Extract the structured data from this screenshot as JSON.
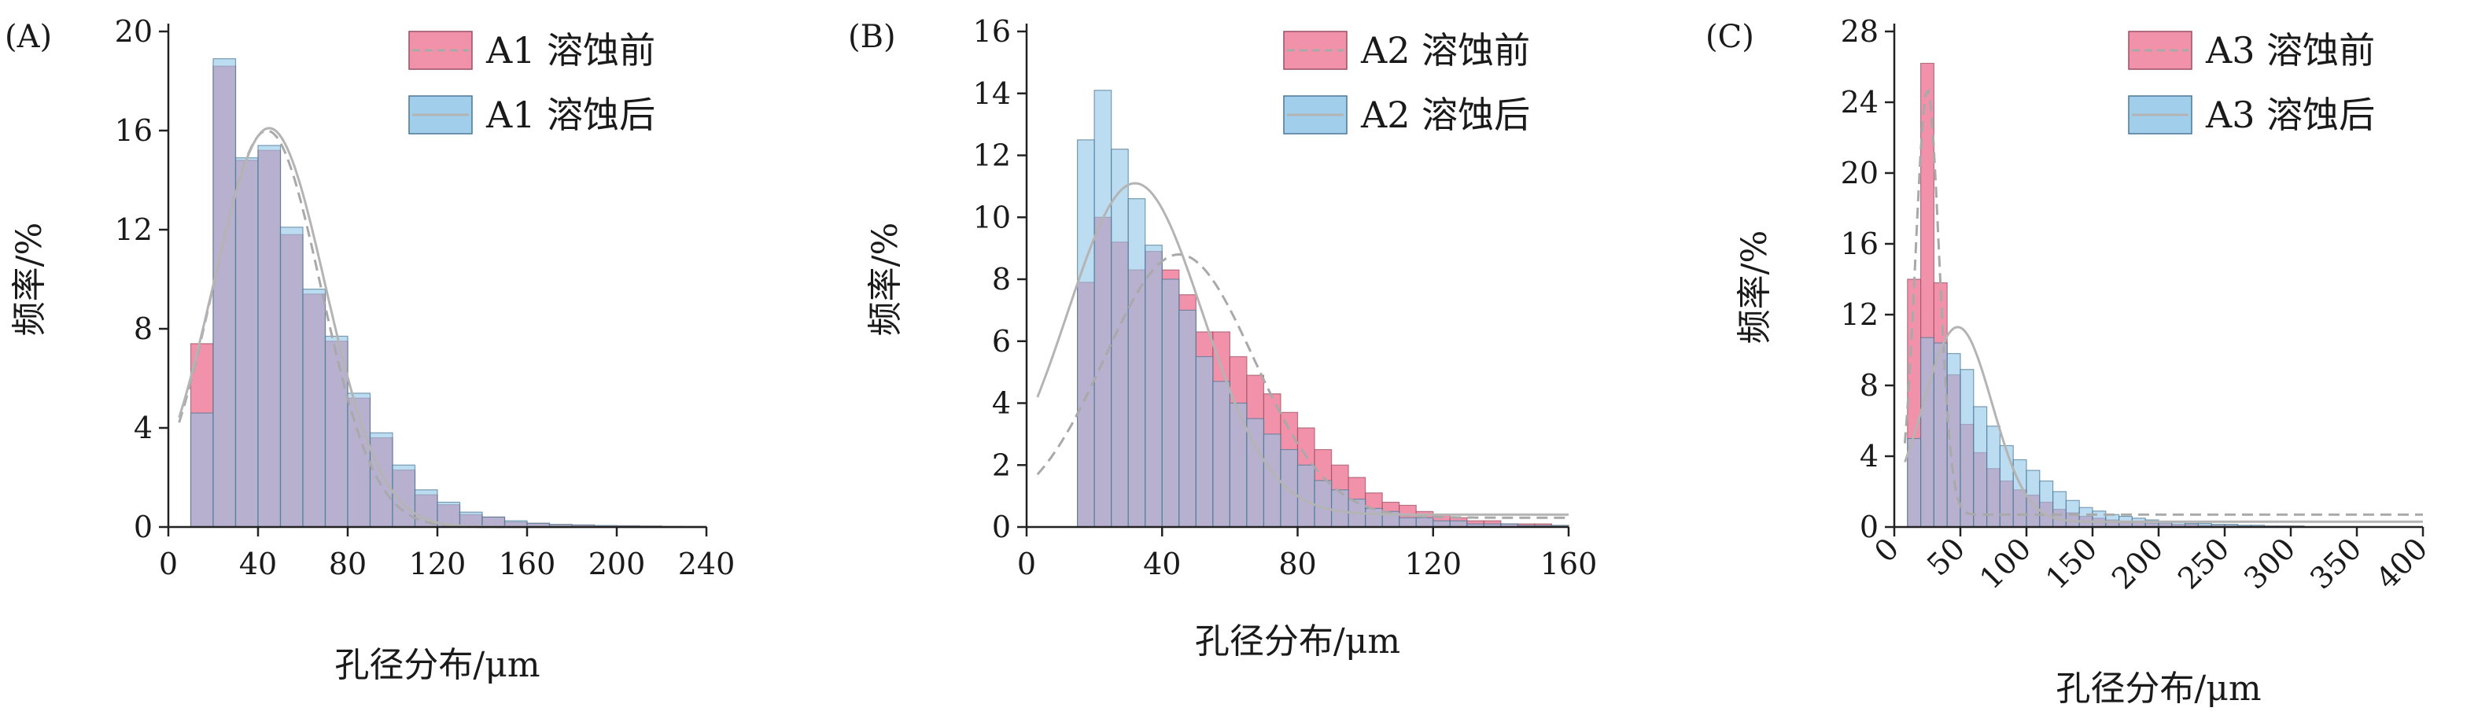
{
  "chart_data": [
    {
      "type": "bar",
      "panel_label": "(A)",
      "xlabel": "孔径分布/μm",
      "ylabel": "频率/%",
      "xlim": [
        0,
        240
      ],
      "ylim": [
        0,
        20
      ],
      "xticks": [
        0,
        40,
        80,
        120,
        160,
        200,
        240
      ],
      "yticks": [
        0,
        4,
        8,
        12,
        16,
        20
      ],
      "x_tick_rotate": false,
      "bin_width": 10,
      "bin_starts": [
        10,
        20,
        30,
        40,
        50,
        60,
        70,
        80,
        90,
        100,
        110,
        120,
        130,
        140,
        150,
        160,
        170,
        180,
        190,
        200,
        210,
        220,
        230
      ],
      "legend_position": "top-right",
      "series": [
        {
          "name": "A1 溶蚀前",
          "color": "#f07f9b",
          "values": [
            7.4,
            18.6,
            14.8,
            15.2,
            11.8,
            9.4,
            7.5,
            5.2,
            3.6,
            2.3,
            1.3,
            0.9,
            0.5,
            0.4,
            0.2,
            0.15,
            0.1,
            0.08,
            0.05,
            0.05,
            0.04,
            0.03,
            0.02
          ],
          "fit_style": "dashed",
          "fit_color": "#a9a9a9",
          "fit": {
            "kind": "gaussian",
            "mean": 44,
            "sd": 24,
            "amp": 16,
            "offset": 0
          }
        },
        {
          "name": "A1 溶蚀后",
          "color": "#8fc6e8",
          "values": [
            4.6,
            18.9,
            14.9,
            15.4,
            12.1,
            9.6,
            7.7,
            5.4,
            3.8,
            2.5,
            1.5,
            1.0,
            0.6,
            0.4,
            0.25,
            0.15,
            0.1,
            0.08,
            0.06,
            0.05,
            0.04,
            0.03,
            0.02
          ],
          "fit_style": "solid",
          "fit_color": "#b4b4b4",
          "fit": {
            "kind": "gaussian",
            "mean": 45,
            "sd": 25,
            "amp": 16.1,
            "offset": 0
          }
        }
      ]
    },
    {
      "type": "bar",
      "panel_label": "(B)",
      "xlabel": "孔径分布/μm",
      "ylabel": "频率/%",
      "xlim": [
        0,
        160
      ],
      "ylim": [
        0,
        16
      ],
      "xticks": [
        0,
        40,
        80,
        120,
        160
      ],
      "yticks": [
        0,
        2,
        4,
        6,
        8,
        10,
        12,
        14,
        16
      ],
      "x_tick_rotate": false,
      "bin_width": 5,
      "bin_starts": [
        15,
        20,
        25,
        30,
        35,
        40,
        45,
        50,
        55,
        60,
        65,
        70,
        75,
        80,
        85,
        90,
        95,
        100,
        105,
        110,
        115,
        120,
        125,
        130,
        135,
        140,
        145,
        150,
        155
      ],
      "legend_position": "top-right",
      "series": [
        {
          "name": "A2 溶蚀前",
          "color": "#f07f9b",
          "values": [
            7.9,
            10.0,
            9.2,
            8.3,
            8.9,
            8.3,
            7.5,
            6.3,
            6.3,
            5.5,
            4.9,
            4.3,
            3.7,
            3.2,
            2.5,
            2.0,
            1.6,
            1.1,
            0.8,
            0.7,
            0.5,
            0.4,
            0.3,
            0.2,
            0.2,
            0.1,
            0.1,
            0.1,
            0.05
          ],
          "fit_style": "dashed",
          "fit_color": "#a9a9a9",
          "fit": {
            "kind": "gaussian",
            "mean": 45,
            "sd": 22,
            "amp": 8.5,
            "offset": 0.3
          }
        },
        {
          "name": "A2 溶蚀后",
          "color": "#8fc6e8",
          "values": [
            12.5,
            14.1,
            12.2,
            10.6,
            9.1,
            8.0,
            7.0,
            5.5,
            4.7,
            4.0,
            3.5,
            3.0,
            2.5,
            2.0,
            1.5,
            1.2,
            0.9,
            0.6,
            0.5,
            0.3,
            0.3,
            0.2,
            0.2,
            0.1,
            0.1,
            0.1,
            0.05,
            0.05,
            0.05
          ],
          "fit_style": "solid",
          "fit_color": "#b4b4b4",
          "fit": {
            "kind": "gaussian",
            "mean": 32,
            "sd": 20,
            "amp": 10.7,
            "offset": 0.4
          }
        }
      ]
    },
    {
      "type": "bar",
      "panel_label": "(C)",
      "xlabel": "孔径分布/μm",
      "ylabel": "频率/%",
      "xlim": [
        0,
        400
      ],
      "ylim": [
        0,
        28
      ],
      "xticks": [
        0,
        50,
        100,
        150,
        200,
        250,
        300,
        350,
        400
      ],
      "yticks": [
        0,
        4,
        8,
        12,
        16,
        20,
        24,
        28
      ],
      "x_tick_rotate": true,
      "bin_width": 10,
      "bin_starts": [
        10,
        20,
        30,
        40,
        50,
        60,
        70,
        80,
        90,
        100,
        110,
        120,
        130,
        140,
        150,
        160,
        170,
        180,
        190,
        200,
        210,
        220,
        230,
        240,
        250,
        260,
        270,
        280,
        290,
        300
      ],
      "legend_position": "top-right",
      "series": [
        {
          "name": "A3 溶蚀前",
          "color": "#f07f9b",
          "values": [
            14.0,
            26.2,
            13.8,
            8.6,
            5.8,
            4.2,
            3.3,
            2.6,
            2.1,
            1.8,
            1.4,
            1.0,
            0.8,
            0.6,
            0.5,
            0.4,
            0.3,
            0.3,
            0.2,
            0.2,
            0.15,
            0.15,
            0.1,
            0.1,
            0.1,
            0.05,
            0.05,
            0.05,
            0.05,
            0.05
          ],
          "fit_style": "dashed",
          "fit_color": "#a9a9a9",
          "fit": {
            "kind": "gaussian",
            "mean": 25,
            "sd": 9,
            "amp": 24,
            "offset": 0.7
          }
        },
        {
          "name": "A3 溶蚀后",
          "color": "#8fc6e8",
          "values": [
            5.0,
            10.7,
            10.4,
            9.8,
            8.9,
            6.8,
            5.7,
            4.6,
            3.8,
            3.2,
            2.6,
            2.0,
            1.5,
            1.1,
            0.9,
            0.7,
            0.6,
            0.5,
            0.4,
            0.3,
            0.3,
            0.2,
            0.2,
            0.15,
            0.15,
            0.1,
            0.1,
            0.05,
            0.05,
            0.05
          ],
          "fit_style": "solid",
          "fit_color": "#b4b4b4",
          "fit": {
            "kind": "gaussian",
            "mean": 48,
            "sd": 26,
            "amp": 11,
            "offset": 0.3
          }
        }
      ]
    }
  ]
}
